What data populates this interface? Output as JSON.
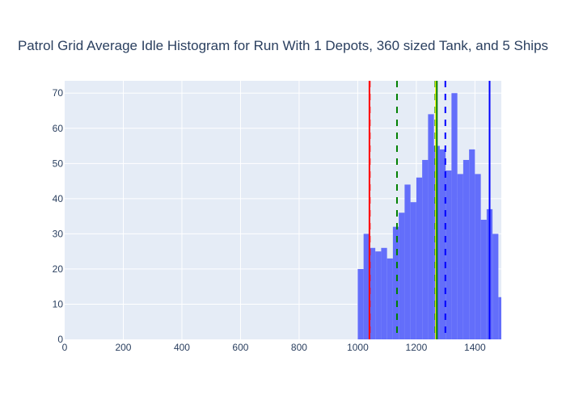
{
  "chart_data": {
    "type": "bar",
    "title": "Patrol Grid Average Idle Histogram for Run With 1 Depots, 360 sized Tank, and 5 Ships",
    "xlabel": "",
    "ylabel": "",
    "xlim": [
      0,
      1490
    ],
    "ylim": [
      0,
      73.5
    ],
    "x_ticks": [
      0,
      200,
      400,
      600,
      800,
      1000,
      1200,
      1400
    ],
    "y_ticks": [
      0,
      10,
      20,
      30,
      40,
      50,
      60,
      70
    ],
    "grid": true,
    "legend": "none",
    "bar_color": "#636efa",
    "background_color": "#e5ecf6",
    "bins": [
      {
        "x0": 1000,
        "x1": 1020,
        "count": 20
      },
      {
        "x0": 1020,
        "x1": 1040,
        "count": 30
      },
      {
        "x0": 1040,
        "x1": 1060,
        "count": 26
      },
      {
        "x0": 1060,
        "x1": 1080,
        "count": 25
      },
      {
        "x0": 1080,
        "x1": 1100,
        "count": 26
      },
      {
        "x0": 1100,
        "x1": 1120,
        "count": 23
      },
      {
        "x0": 1120,
        "x1": 1140,
        "count": 32
      },
      {
        "x0": 1140,
        "x1": 1160,
        "count": 36
      },
      {
        "x0": 1160,
        "x1": 1180,
        "count": 44
      },
      {
        "x0": 1180,
        "x1": 1200,
        "count": 39
      },
      {
        "x0": 1200,
        "x1": 1220,
        "count": 46
      },
      {
        "x0": 1220,
        "x1": 1240,
        "count": 51
      },
      {
        "x0": 1240,
        "x1": 1260,
        "count": 64
      },
      {
        "x0": 1260,
        "x1": 1280,
        "count": 55
      },
      {
        "x0": 1280,
        "x1": 1300,
        "count": 54
      },
      {
        "x0": 1300,
        "x1": 1320,
        "count": 48
      },
      {
        "x0": 1320,
        "x1": 1340,
        "count": 70
      },
      {
        "x0": 1340,
        "x1": 1360,
        "count": 47
      },
      {
        "x0": 1360,
        "x1": 1380,
        "count": 51
      },
      {
        "x0": 1380,
        "x1": 1400,
        "count": 54
      },
      {
        "x0": 1400,
        "x1": 1420,
        "count": 47
      },
      {
        "x0": 1420,
        "x1": 1440,
        "count": 34
      },
      {
        "x0": 1440,
        "x1": 1460,
        "count": 37
      },
      {
        "x0": 1460,
        "x1": 1480,
        "count": 30
      },
      {
        "x0": 1480,
        "x1": 1500,
        "count": 12
      }
    ],
    "vertical_lines": [
      {
        "x": 1040,
        "color": "#ff0000",
        "style": "solid"
      },
      {
        "x": 1041,
        "color": "#ff0000",
        "style": "dashed"
      },
      {
        "x": 1134,
        "color": "#008000",
        "style": "dashed"
      },
      {
        "x": 1265,
        "color": "#008000",
        "style": "dashed"
      },
      {
        "x": 1267,
        "color": "#ffff00",
        "style": "solid"
      },
      {
        "x": 1270,
        "color": "#008000",
        "style": "solid"
      },
      {
        "x": 1299,
        "color": "#0000ff",
        "style": "dashed"
      },
      {
        "x": 1450,
        "color": "#0000ff",
        "style": "solid"
      }
    ]
  }
}
